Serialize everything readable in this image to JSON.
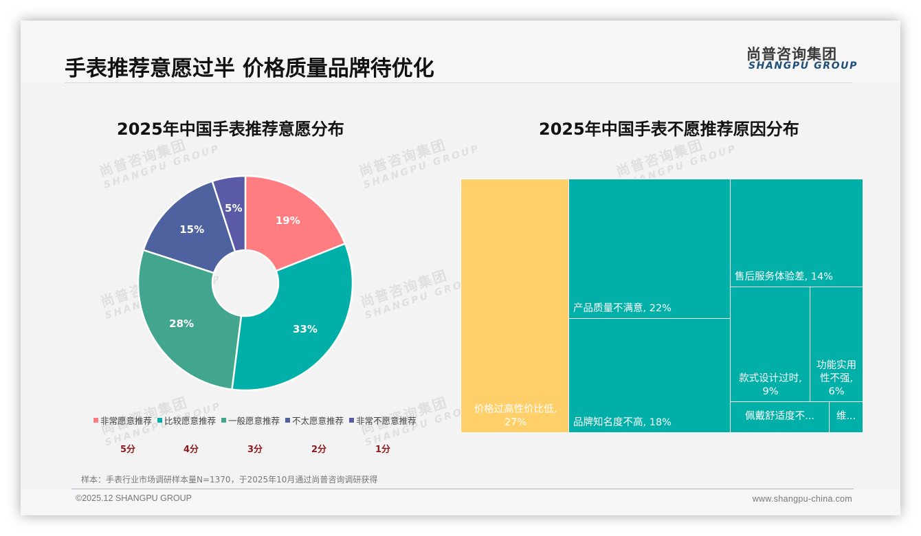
{
  "header": {
    "title": "手表推荐意愿过半 价格质量品牌待优化",
    "logo_cn": "尚普咨询集团",
    "logo_en": "SHANGPU GROUP"
  },
  "watermark": {
    "cn": "尚普咨询集团",
    "en": "SHANGPU GROUP"
  },
  "left_chart": {
    "title": "2025年中国手表推荐意愿分布",
    "slices": [
      {
        "label": "非常愿意推荐",
        "value_label": "19%",
        "color": "#FF7C80",
        "score": "5分"
      },
      {
        "label": "比较愿意推荐",
        "value_label": "33%",
        "color": "#00B0A8",
        "score": "4分"
      },
      {
        "label": "一般愿意推荐",
        "value_label": "28%",
        "color": "#42A68F",
        "score": "3分"
      },
      {
        "label": "不太愿意推荐",
        "value_label": "15%",
        "color": "#4E62A0",
        "score": "2分"
      },
      {
        "label": "非常不愿意推荐",
        "value_label": "5%",
        "color": "#5B5AA6",
        "score": "1分"
      }
    ]
  },
  "right_chart": {
    "title": "2025年中国手表不愿推荐原因分布",
    "tiles": [
      {
        "label": "价格过高性价比低,",
        "value_label": "27%"
      },
      {
        "label": "产品质量不满意, 22%"
      },
      {
        "label": "品牌知名度不高, 18%"
      },
      {
        "label": "售后服务体验差, 14%"
      },
      {
        "label": "款式设计过时,",
        "value_label": "9%"
      },
      {
        "label": "功能实用",
        "label2": "性不强,",
        "value_label": "6%"
      },
      {
        "label": "佩戴舒适度不..."
      },
      {
        "label": "维..."
      }
    ]
  },
  "footer": {
    "footnote": "样本：手表行业市场调研样本量N=1370，于2025年10月通过尚普咨询调研获得",
    "copyright": "©2025.12 SHANGPU GROUP",
    "website": "www.shangpu-china.com"
  },
  "chart_data": [
    {
      "type": "pie",
      "title": "2025年中国手表推荐意愿分布",
      "categories": [
        "非常愿意推荐",
        "比较愿意推荐",
        "一般愿意推荐",
        "不太愿意推荐",
        "非常不愿意推荐"
      ],
      "values": [
        19,
        33,
        28,
        15,
        5
      ],
      "unit": "%",
      "donut": true,
      "scores": [
        "5分",
        "4分",
        "3分",
        "2分",
        "1分"
      ],
      "colors": [
        "#FF7C80",
        "#00B0A8",
        "#42A68F",
        "#4E62A0",
        "#5B5AA6"
      ],
      "legend_position": "bottom"
    },
    {
      "type": "treemap",
      "title": "2025年中国手表不愿推荐原因分布",
      "categories": [
        "价格过高性价比低",
        "产品质量不满意",
        "品牌知名度不高",
        "售后服务体验差",
        "款式设计过时",
        "功能实用性不强",
        "佩戴舒适度不...",
        "维..."
      ],
      "values": [
        27,
        22,
        18,
        14,
        9,
        6,
        null,
        null
      ],
      "unit": "%",
      "colors": [
        "#FFCF6A",
        "#00B0A8",
        "#00B0A8",
        "#00B0A8",
        "#00B0A8",
        "#00B0A8",
        "#00B0A8",
        "#00B0A8"
      ]
    }
  ]
}
